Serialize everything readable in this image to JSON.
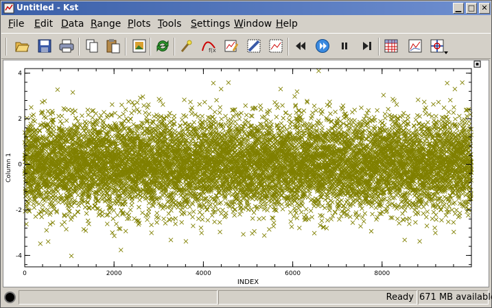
{
  "window": {
    "title": "Untitled - Kst"
  },
  "menu": [
    {
      "label": "File",
      "u": "F",
      "rest": "ile"
    },
    {
      "label": "Edit",
      "u": "E",
      "rest": "dit"
    },
    {
      "label": "Data",
      "u": "D",
      "rest": "ata"
    },
    {
      "label": "Range",
      "u": "R",
      "rest": "ange"
    },
    {
      "label": "Plots",
      "u": "P",
      "rest": "lots"
    },
    {
      "label": "Tools",
      "u": "T",
      "rest": "ools"
    },
    {
      "label": "Settings",
      "u": "S",
      "rest": "ettings"
    },
    {
      "label": "Window",
      "u": "W",
      "rest": "indow"
    },
    {
      "label": "Help",
      "u": "H",
      "rest": "elp"
    }
  ],
  "toolbar_icons": [
    "open-folder-icon",
    "save-disk-icon",
    "print-icon",
    "copy-icon",
    "paste-icon",
    "export-image-icon",
    "reload-icon",
    "wand-icon",
    "curve-fit-icon",
    "edit-plot-icon",
    "layout-mode-icon",
    "zoom-mode-icon",
    "back-icon",
    "play-forward-icon",
    "pause-icon",
    "skip-end-icon",
    "data-grid-icon",
    "plot-icon",
    "crosshair-icon"
  ],
  "status": {
    "message": "Ready",
    "memory": "671 MB available"
  },
  "chart_data": {
    "type": "scatter",
    "title": "",
    "xlabel": "INDEX",
    "ylabel": "Column 1",
    "xlim": [
      0,
      10000
    ],
    "ylim": [
      -4.5,
      4.2
    ],
    "x_ticks": [
      "0",
      "2000",
      "4000",
      "6000",
      "8000"
    ],
    "y_ticks": [
      "4",
      "2",
      "0",
      "-2",
      "-4"
    ],
    "grid": false,
    "series": [
      {
        "marker": "x",
        "color": "#808000",
        "n_points": 10000,
        "distribution": "gaussian",
        "mean": 0,
        "stddev": 1
      }
    ]
  }
}
